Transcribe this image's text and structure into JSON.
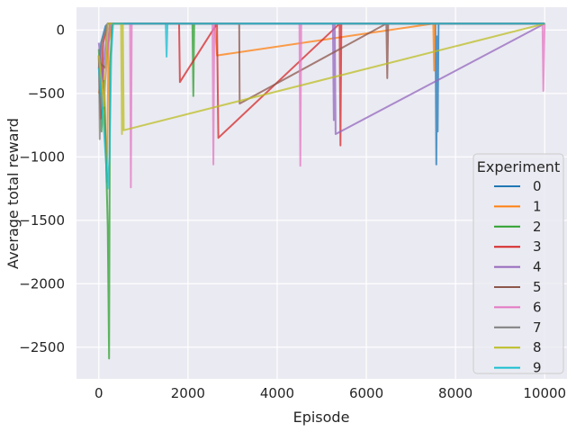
{
  "chart_data": {
    "type": "line",
    "xlabel": "Episode",
    "ylabel": "Average total reward",
    "xlim": [
      -500,
      10500
    ],
    "ylim": [
      -2750,
      180
    ],
    "xticks": [
      0,
      2000,
      4000,
      6000,
      8000,
      10000
    ],
    "yticks": [
      0,
      -500,
      -1000,
      -1500,
      -2000,
      -2500
    ],
    "grid": true,
    "legend": {
      "title": "Experiment",
      "placement": "lower-right"
    },
    "plateau": 50,
    "series": [
      {
        "name": "0",
        "color": "#1f77b4",
        "x": [
          0,
          50,
          150,
          200,
          300,
          7550,
          7570,
          7590,
          7600,
          7620,
          10000
        ],
        "y": [
          -300,
          -100,
          30,
          50,
          50,
          50,
          -1060,
          -50,
          -800,
          50,
          50
        ]
      },
      {
        "name": "1",
        "color": "#ff7f0e",
        "x": [
          0,
          100,
          180,
          220,
          300,
          2600,
          2650,
          7500,
          7520,
          7540,
          10000
        ],
        "y": [
          -500,
          -300,
          -1200,
          -100,
          50,
          50,
          -200,
          50,
          -320,
          50,
          50
        ]
      },
      {
        "name": "2",
        "color": "#2ca02c",
        "x": [
          0,
          60,
          120,
          200,
          230,
          250,
          300,
          2100,
          2120,
          2140,
          10000
        ],
        "y": [
          -150,
          -800,
          -400,
          -1550,
          -2590,
          -300,
          50,
          50,
          -520,
          50,
          50
        ]
      },
      {
        "name": "3",
        "color": "#d62728",
        "x": [
          0,
          40,
          100,
          200,
          1800,
          1820,
          2650,
          2680,
          5400,
          5420,
          5440,
          10000
        ],
        "y": [
          -200,
          -700,
          -100,
          50,
          50,
          -410,
          50,
          -850,
          50,
          -910,
          50,
          50
        ]
      },
      {
        "name": "4",
        "color": "#9467bd",
        "x": [
          0,
          80,
          200,
          5250,
          5270,
          5290,
          5310,
          10000
        ],
        "y": [
          -100,
          -400,
          50,
          50,
          -710,
          50,
          -820,
          50
        ]
      },
      {
        "name": "5",
        "color": "#8c564b",
        "x": [
          0,
          150,
          250,
          3150,
          3160,
          6450,
          6470,
          6490,
          10000
        ],
        "y": [
          -250,
          -300,
          50,
          50,
          -580,
          50,
          -380,
          50,
          50
        ]
      },
      {
        "name": "6",
        "color": "#e377c2",
        "x": [
          0,
          100,
          250,
          700,
          720,
          740,
          2550,
          2570,
          2590,
          4500,
          4520,
          4540,
          9950,
          9970,
          10000
        ],
        "y": [
          -300,
          -600,
          50,
          50,
          -1240,
          50,
          50,
          -1060,
          50,
          50,
          -1070,
          50,
          50,
          -480,
          50
        ]
      },
      {
        "name": "7",
        "color": "#7f7f7f",
        "x": [
          0,
          20,
          60,
          200,
          10000
        ],
        "y": [
          -200,
          -860,
          -100,
          50,
          50
        ]
      },
      {
        "name": "8",
        "color": "#bcbd22",
        "x": [
          0,
          120,
          200,
          500,
          520,
          540,
          560,
          10000
        ],
        "y": [
          -200,
          -600,
          50,
          50,
          -820,
          50,
          -790,
          50
        ]
      },
      {
        "name": "9",
        "color": "#17becf",
        "x": [
          0,
          100,
          200,
          240,
          280,
          320,
          1500,
          1520,
          1540,
          10000
        ],
        "y": [
          -300,
          -700,
          -1250,
          -1000,
          -200,
          50,
          50,
          -210,
          50,
          50
        ]
      }
    ]
  }
}
